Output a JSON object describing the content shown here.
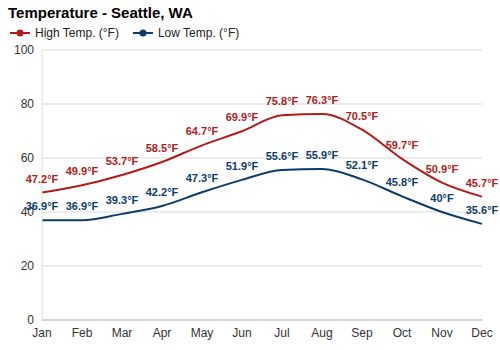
{
  "chart_data": {
    "type": "line",
    "title": "Temperature - Seattle, WA",
    "categories": [
      "Jan",
      "Feb",
      "Mar",
      "Apr",
      "May",
      "Jun",
      "Jul",
      "Aug",
      "Sep",
      "Oct",
      "Nov",
      "Dec"
    ],
    "series": [
      {
        "name": "High Temp. (°F)",
        "color": "#b31b1b",
        "values": [
          47.2,
          49.9,
          53.7,
          58.5,
          64.7,
          69.9,
          75.8,
          76.3,
          70.5,
          59.7,
          50.9,
          45.7
        ],
        "value_labels": [
          "47.2°F",
          "49.9°F",
          "53.7°F",
          "58.5°F",
          "64.7°F",
          "69.9°F",
          "75.8°F",
          "76.3°F",
          "70.5°F",
          "59.7°F",
          "50.9°F",
          "45.7°F"
        ]
      },
      {
        "name": "Low Temp. (°F)",
        "color": "#0d3c6a",
        "values": [
          36.9,
          36.9,
          39.3,
          42.2,
          47.3,
          51.9,
          55.6,
          55.9,
          52.1,
          45.8,
          40,
          35.6
        ],
        "value_labels": [
          "36.9°F",
          "36.9°F",
          "39.3°F",
          "42.2°F",
          "47.3°F",
          "51.9°F",
          "55.6°F",
          "55.9°F",
          "52.1°F",
          "45.8°F",
          "40°F",
          "35.6°F"
        ]
      }
    ],
    "ylim": [
      0,
      100
    ],
    "yticks": [
      0,
      20,
      40,
      60,
      80,
      100
    ],
    "grid": true,
    "data_labels": true
  }
}
